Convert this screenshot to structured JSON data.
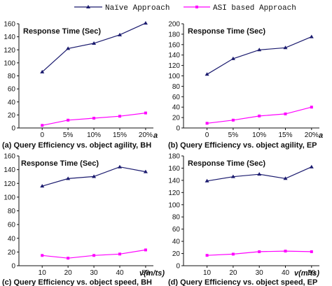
{
  "legend": {
    "naive_label": "Naïve Approach",
    "asi_label": "ASI based Approach"
  },
  "colors": {
    "naive": "#1a1a6e",
    "asi": "#ff00ff",
    "axis": "#111111"
  },
  "chart_data": [
    {
      "type": "line",
      "title": "Response Time (Sec)",
      "caption": "(a) Query Efficiency vs. object agility, BH",
      "xlabel": "a",
      "categories": [
        "0",
        "5%",
        "10%",
        "15%",
        "20%"
      ],
      "ylim": [
        0,
        160
      ],
      "yticks": [
        0,
        20,
        40,
        60,
        80,
        100,
        120,
        140,
        160
      ],
      "series": [
        {
          "name": "Naïve Approach",
          "values": [
            86,
            122,
            130,
            143,
            161
          ]
        },
        {
          "name": "ASI based Approach",
          "values": [
            4,
            12,
            15,
            18,
            23
          ]
        }
      ]
    },
    {
      "type": "line",
      "title": "Response Time (Sec)",
      "caption": "(b) Query Efficiency vs. object agility, EP",
      "xlabel": "a",
      "categories": [
        "0",
        "5%",
        "10%",
        "15%",
        "20%"
      ],
      "ylim": [
        0,
        200
      ],
      "yticks": [
        0,
        20,
        40,
        60,
        80,
        100,
        120,
        140,
        160,
        180,
        200
      ],
      "series": [
        {
          "name": "Naïve Approach",
          "values": [
            103,
            133,
            150,
            154,
            175
          ]
        },
        {
          "name": "ASI based Approach",
          "values": [
            9,
            15,
            23,
            27,
            40
          ]
        }
      ]
    },
    {
      "type": "line",
      "title": "Response Time (Sec)",
      "caption": "(c) Query Efficiency vs. object speed, BH",
      "xlabel": "v(m/ts)",
      "categories": [
        "10",
        "20",
        "30",
        "40",
        "50"
      ],
      "ylim": [
        0,
        160
      ],
      "yticks": [
        0,
        20,
        40,
        60,
        80,
        100,
        120,
        140,
        160
      ],
      "series": [
        {
          "name": "Naïve Approach",
          "values": [
            116,
            127,
            130,
            144,
            137
          ]
        },
        {
          "name": "ASI based Approach",
          "values": [
            15,
            11,
            15,
            17,
            23
          ]
        }
      ]
    },
    {
      "type": "line",
      "title": "Response Time (Sec)",
      "caption": "(d) Query Efficiency vs. object speed, EP",
      "xlabel": "v(m/ts)",
      "categories": [
        "10",
        "20",
        "30",
        "40",
        "50"
      ],
      "ylim": [
        0,
        180
      ],
      "yticks": [
        0,
        20,
        40,
        60,
        80,
        100,
        120,
        140,
        160,
        180
      ],
      "series": [
        {
          "name": "Naïve Approach",
          "values": [
            139,
            146,
            150,
            143,
            162
          ]
        },
        {
          "name": "ASI based Approach",
          "values": [
            17,
            19,
            23,
            24,
            23
          ]
        }
      ]
    }
  ]
}
